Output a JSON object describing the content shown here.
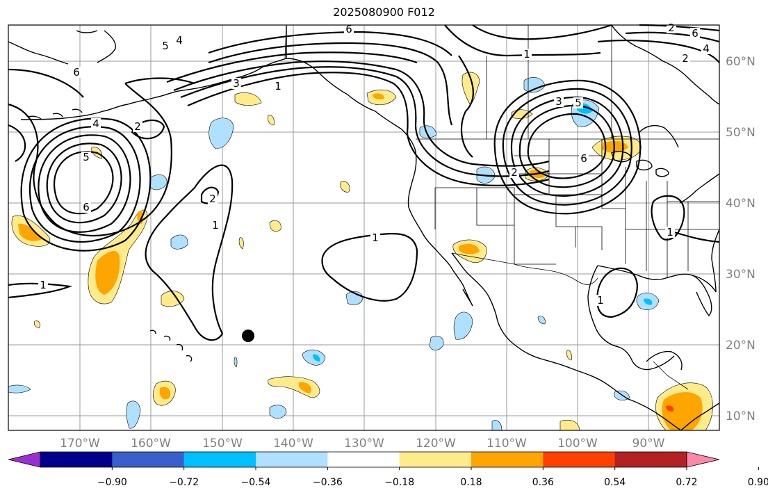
{
  "title": "2025080900 F012",
  "lon_ticks": [
    "170°W",
    "160°W",
    "150°W",
    "140°W",
    "130°W",
    "120°W",
    "110°W",
    "100°W",
    "90°W"
  ],
  "lat_ticks": [
    "60°N",
    "50°N",
    "40°N",
    "30°N",
    "20°N",
    "10°N"
  ],
  "colorbar": {
    "tick_labels": [
      "−0.90",
      "−0.72",
      "−0.54",
      "−0.36",
      "−0.18",
      "0.18",
      "0.36",
      "0.54",
      "0.72",
      "0.90"
    ],
    "colors": [
      "#9b30d0",
      "#00008b",
      "#3a5fcd",
      "#00bfff",
      "#b0e0ff",
      "#ffffff",
      "#ffeb8a",
      "#ffa500",
      "#ff4000",
      "#b22222",
      "#ff88aa"
    ]
  },
  "contour_labels": [
    "6",
    "4",
    "5",
    "3",
    "1",
    "2",
    "6",
    "4",
    "5",
    "2",
    "6",
    "1",
    "2",
    "1",
    "1",
    "1",
    "5",
    "6",
    "4",
    "2",
    "3",
    "6",
    "2",
    "1",
    "1"
  ],
  "marker": "black-dot"
}
